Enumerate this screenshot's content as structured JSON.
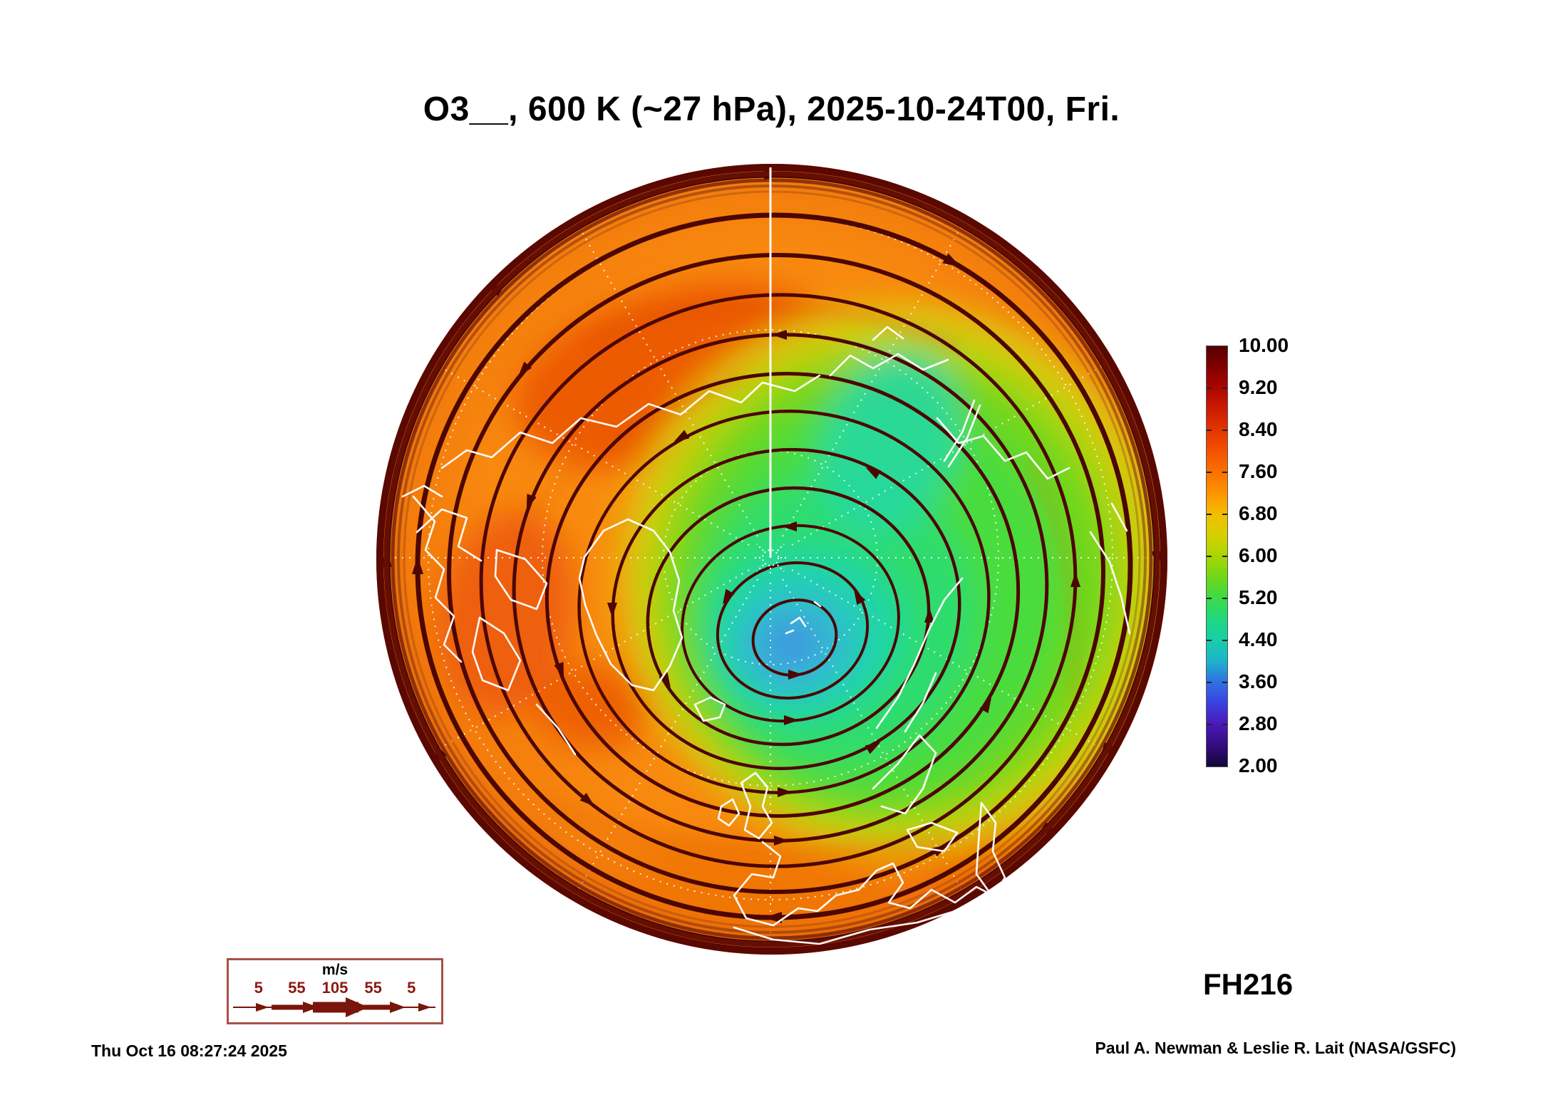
{
  "header": {
    "title": "O3__, 600 K (~27 hPa), 2025-10-24T00, Fri."
  },
  "footer": {
    "forecast_hour_label": "FH216",
    "timestamp": "Thu Oct 16 08:27:24 2025",
    "credit": "Paul A. Newman & Leslie R. Lait (NASA/GSFC)"
  },
  "colorbar": {
    "tick_labels": [
      "10.00",
      "9.20",
      "8.40",
      "7.60",
      "6.80",
      "6.00",
      "5.20",
      "4.40",
      "3.60",
      "2.80",
      "2.00"
    ],
    "gradient_top_to_bottom": [
      "#560000",
      "#830000",
      "#AC0600",
      "#CC1C00",
      "#E33600",
      "#F35200",
      "#FC7000",
      "#FF9300",
      "#F0BE00",
      "#D6D000",
      "#A8D600",
      "#6ED81A",
      "#3CDB48",
      "#1FD77F",
      "#17CFA8",
      "#1FB2CC",
      "#2F6FE4",
      "#3A41E0",
      "#4A18B8",
      "#340C7E",
      "#120838"
    ]
  },
  "wind_legend": {
    "units_label": "m/s",
    "speed_labels": [
      "5",
      "55",
      "105",
      "55",
      "5"
    ],
    "border_color": "#A85048",
    "arrow_color": "#7A150C",
    "number_color": "#8B1A12"
  },
  "map_style": {
    "coastline_color": "#FFFFFF",
    "streamline_color": "#4C0702",
    "rim_color": "#5A0802",
    "graticule_color": "#FFFFFF",
    "base_field_color": "#F8890F"
  },
  "chart_data": {
    "type": "heatmap",
    "title": "O3__, 600 K (~27 hPa), 2025-10-24T00, Fri.",
    "level": "600 K (~27 hPa)",
    "valid_time": "2025-10-24T00",
    "valid_weekday": "Fri.",
    "forecast_hour": 216,
    "colorbar_range": [
      2.0,
      10.0
    ],
    "colorbar_tick_step": 0.8,
    "colorbar_ticks": [
      10.0,
      9.2,
      8.4,
      7.6,
      6.8,
      6.0,
      5.2,
      4.4,
      3.6,
      2.8,
      2.0
    ],
    "field_features": [
      {
        "name": "polar vortex minimum",
        "approx_value": 3.4,
        "location": "near Svalbard, between Greenland and Scandinavia"
      },
      {
        "name": "secondary minimum",
        "approx_value": 4.8,
        "location": "western Siberia"
      },
      {
        "name": "high-ozone rim",
        "approx_value": 10.0,
        "location": "outer (low-latitude) edge of map"
      },
      {
        "name": "background field",
        "approx_value": 8.0,
        "location": "North America / Arctic Ocean sector"
      }
    ],
    "flow": {
      "pattern": "closed streamlines encircling the displaced polar vortex",
      "inner_direction": "counterclockwise (cyclonic)",
      "outer_rim_direction": "clockwise",
      "speed_scale_m_s": [
        5,
        55,
        105,
        55,
        5
      ]
    }
  }
}
